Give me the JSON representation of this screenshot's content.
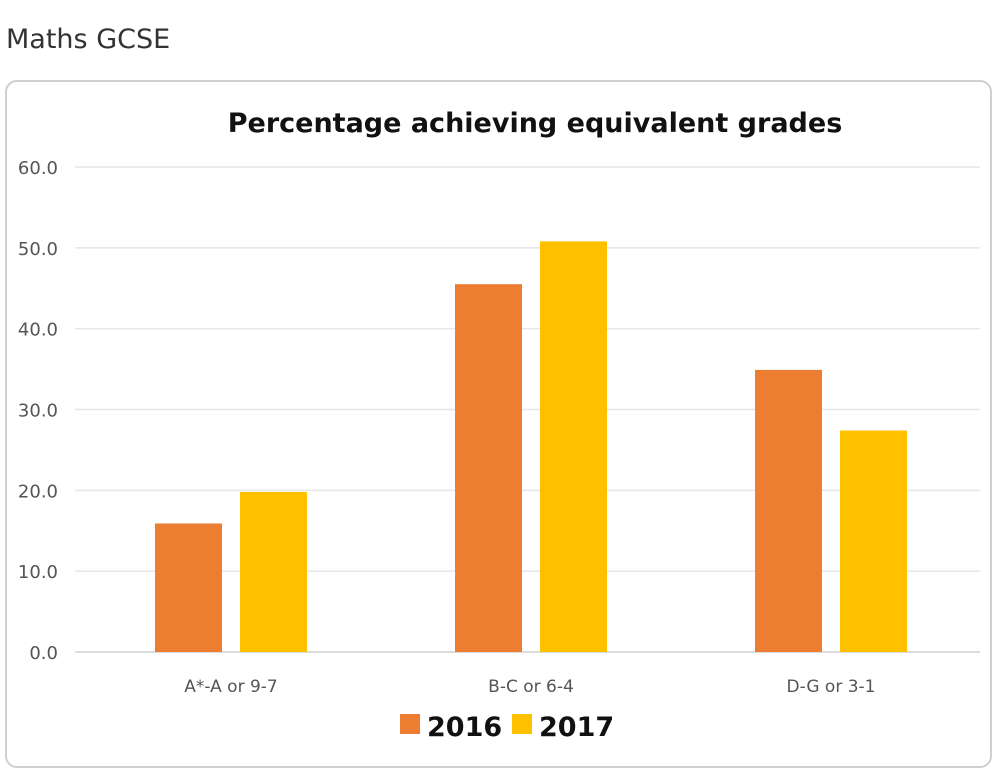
{
  "page_title": "Maths GCSE",
  "chart_data": {
    "type": "bar",
    "title": "Percentage achieving equivalent grades",
    "xlabel": "",
    "ylabel": "",
    "categories": [
      "A*-A or 9-7",
      "B-C or 6-4",
      "D-G or 3-1"
    ],
    "series": [
      {
        "name": "2016",
        "color": "#ED7D31",
        "values": [
          15.9,
          45.5,
          34.9
        ]
      },
      {
        "name": "2017",
        "color": "#FFC000",
        "values": [
          19.8,
          50.8,
          27.4
        ]
      }
    ],
    "ylim": [
      0,
      60
    ],
    "yticks": [
      "0.0",
      "10.0",
      "20.0",
      "30.0",
      "40.0",
      "50.0",
      "60.0"
    ],
    "grid": true,
    "legend_position": "bottom"
  }
}
